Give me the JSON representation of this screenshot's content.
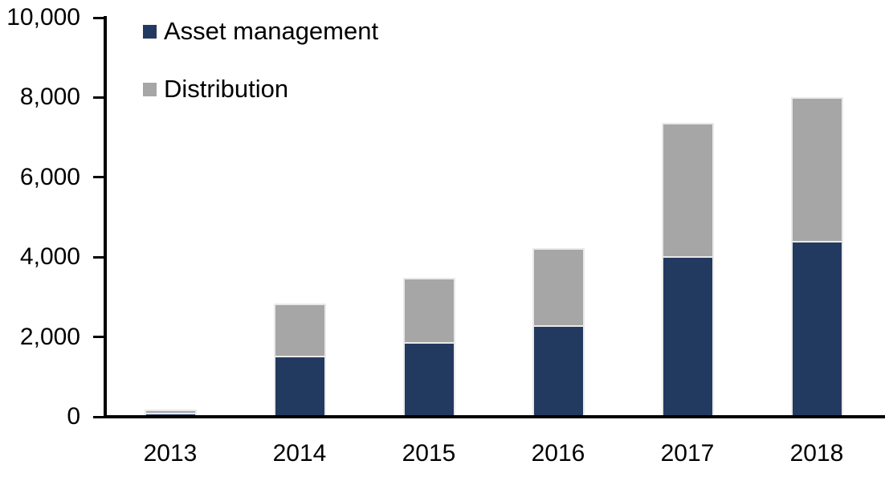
{
  "chart_data": {
    "type": "bar",
    "stacked": true,
    "title": "",
    "xlabel": "",
    "ylabel": "",
    "categories": [
      "2013",
      "2014",
      "2015",
      "2016",
      "2017",
      "2018"
    ],
    "series": [
      {
        "name": "Asset management",
        "color": "#233a60",
        "values": [
          100,
          1520,
          1870,
          2300,
          4030,
          4400
        ]
      },
      {
        "name": "Distribution",
        "color": "#a6a6a6",
        "values": [
          90,
          1320,
          1620,
          1930,
          3340,
          3600
        ]
      }
    ],
    "totals": [
      190,
      2840,
      3490,
      4230,
      7370,
      8000
    ],
    "ylim": [
      0,
      10000
    ],
    "y_ticks": [
      0,
      2000,
      4000,
      6000,
      8000,
      10000
    ],
    "y_tick_labels": [
      "0",
      "2,000",
      "4,000",
      "6,000",
      "8,000",
      "10,000"
    ],
    "grid": false,
    "legend_position": "top-left-inside"
  },
  "colors": {
    "axis": "#000000",
    "background": "#ffffff",
    "bar_border": "#e9e9e9"
  }
}
